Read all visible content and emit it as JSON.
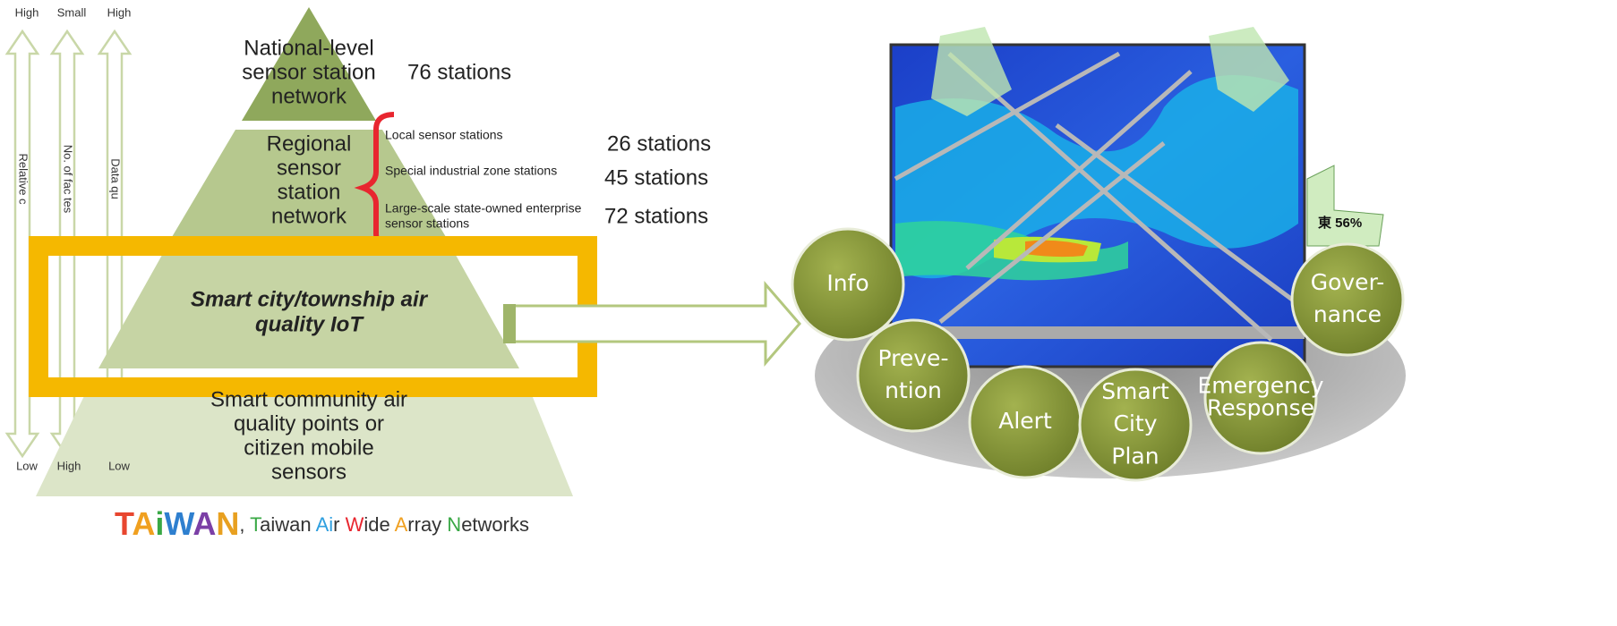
{
  "axes": [
    {
      "top": "High",
      "bottom": "Low",
      "label": "Relative c"
    },
    {
      "top": "Small",
      "bottom": "High",
      "label": "No. of fac  tes"
    },
    {
      "top": "High",
      "bottom": "Low",
      "label": "Data qu"
    }
  ],
  "pyramid": {
    "levels": [
      {
        "lines": [
          "National-level",
          "sensor station",
          "network"
        ]
      },
      {
        "lines": [
          "Regional",
          "sensor",
          "station",
          "network"
        ]
      },
      {
        "lines": [
          "Smart city/township air",
          "quality IoT"
        ]
      },
      {
        "lines": [
          "Smart community air",
          "quality points or",
          "citizen mobile",
          "sensors"
        ]
      }
    ],
    "national_count": "76 stations",
    "regional_items": [
      {
        "lines": [
          "Local sensor stations"
        ],
        "count": "26 stations"
      },
      {
        "lines": [
          "Special industrial zone stations"
        ],
        "count": "45 stations"
      },
      {
        "lines": [
          "Large-scale state-owned enterprise",
          "sensor stations"
        ],
        "count": "72 stations"
      }
    ]
  },
  "footer": {
    "segments": [
      {
        "text": "T",
        "color": "#e8462f"
      },
      {
        "text": "A",
        "color": "#f0a020"
      },
      {
        "text": "i",
        "color": "#39a845"
      },
      {
        "text": "W",
        "color": "#2e7fcf"
      },
      {
        "text": "A",
        "color": "#7b3fa6"
      },
      {
        "text": "N",
        "color": "#e8a020"
      },
      {
        "text": ", ",
        "color": "#333333"
      },
      {
        "text": "T",
        "color": "#39a845"
      },
      {
        "text": "aiwan ",
        "color": "#333333"
      },
      {
        "text": "Ai",
        "color": "#2e9fdf"
      },
      {
        "text": "r ",
        "color": "#333333"
      },
      {
        "text": "W",
        "color": "#e8262f"
      },
      {
        "text": "ide ",
        "color": "#333333"
      },
      {
        "text": "A",
        "color": "#f0a020"
      },
      {
        "text": "rray ",
        "color": "#333333"
      },
      {
        "text": "N",
        "color": "#39a845"
      },
      {
        "text": "etworks",
        "color": "#333333"
      }
    ]
  },
  "map": {
    "badge": "東 56%"
  },
  "functions": [
    {
      "lines": [
        "Info"
      ]
    },
    {
      "lines": [
        "Preve-",
        "ntion"
      ]
    },
    {
      "lines": [
        "Alert"
      ]
    },
    {
      "lines": [
        "Smart",
        "City",
        "Plan"
      ]
    },
    {
      "lines": [
        "Emergency",
        "Response"
      ]
    },
    {
      "lines": [
        "Gover-",
        "nance"
      ]
    }
  ]
}
